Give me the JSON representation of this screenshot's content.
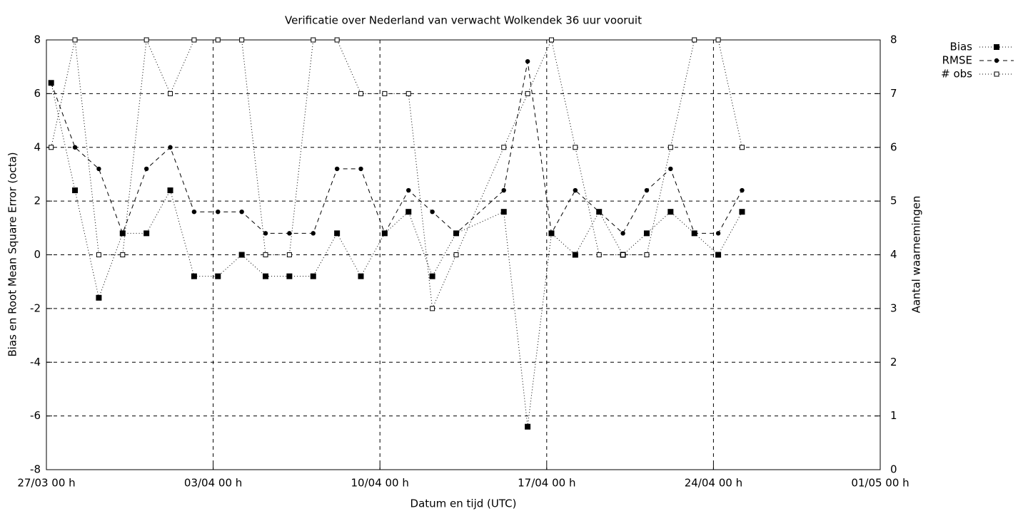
{
  "chart_data": {
    "type": "line",
    "title": "Verificatie over Nederland van verwacht Wolkendek 36 uur vooruit",
    "x_label": "Datum en tijd (UTC)",
    "y_label": "Bias en Root Mean Square Error (octa)",
    "y2_label": "Aantal waarnemingen",
    "x": [
      0.2,
      1.2,
      2.2,
      3.2,
      4.2,
      5.2,
      6.2,
      7.2,
      8.2,
      9.2,
      10.2,
      11.2,
      12.2,
      13.2,
      14.2,
      15.2,
      16.2,
      17.2,
      19.2,
      20.2,
      21.2,
      22.2,
      23.2,
      24.2,
      25.2,
      26.2,
      27.2,
      28.2,
      29.2
    ],
    "xlim": [
      0,
      35
    ],
    "xticks": [
      {
        "value": 0,
        "label": "27/03 00 h"
      },
      {
        "value": 7,
        "label": "03/04 00 h"
      },
      {
        "value": 14,
        "label": "10/04 00 h"
      },
      {
        "value": 21,
        "label": "17/04 00 h"
      },
      {
        "value": 28,
        "label": "24/04 00 h"
      },
      {
        "value": 35,
        "label": "01/05 00 h"
      }
    ],
    "ylim": [
      -8,
      8
    ],
    "yticks": [
      -8,
      -6,
      -4,
      -2,
      0,
      2,
      4,
      6,
      8
    ],
    "y2lim": [
      0,
      8
    ],
    "y2ticks": [
      0,
      1,
      2,
      3,
      4,
      5,
      6,
      7,
      8
    ],
    "grid": true,
    "legend": "top-right",
    "series": [
      {
        "name": "Bias",
        "color": "#000000",
        "marker": "filled-square",
        "dash": "dotted",
        "values": [
          6.4,
          2.4,
          -1.6,
          0.8,
          0.8,
          2.4,
          -0.8,
          -0.8,
          0,
          -0.8,
          -0.8,
          -0.8,
          0.8,
          -0.8,
          0.8,
          1.6,
          -0.8,
          0.8,
          1.6,
          -6.4,
          0.8,
          0,
          1.6,
          0,
          0.8,
          1.6,
          0.8,
          0,
          1.6
        ]
      },
      {
        "name": "RMSE",
        "color": "#000000",
        "marker": "circle",
        "dash": "dashed",
        "values": [
          6.4,
          4,
          3.2,
          0.8,
          3.2,
          4,
          1.6,
          1.6,
          1.6,
          0.8,
          0.8,
          0.8,
          3.2,
          3.2,
          0.8,
          2.4,
          1.6,
          0.8,
          2.4,
          7.2,
          0.8,
          2.4,
          1.6,
          0.8,
          2.4,
          3.2,
          0.8,
          0.8,
          2.4
        ]
      },
      {
        "name": "# obs",
        "color": "#000000",
        "marker": "open-square",
        "dash": "dotted",
        "axis": "y2",
        "values": [
          6,
          8,
          4,
          4,
          8,
          7,
          8,
          8,
          8,
          4,
          4,
          8,
          8,
          7,
          7,
          7,
          3,
          4,
          6,
          7,
          8,
          6,
          4,
          4,
          4,
          6,
          8,
          8,
          6
        ]
      }
    ]
  }
}
